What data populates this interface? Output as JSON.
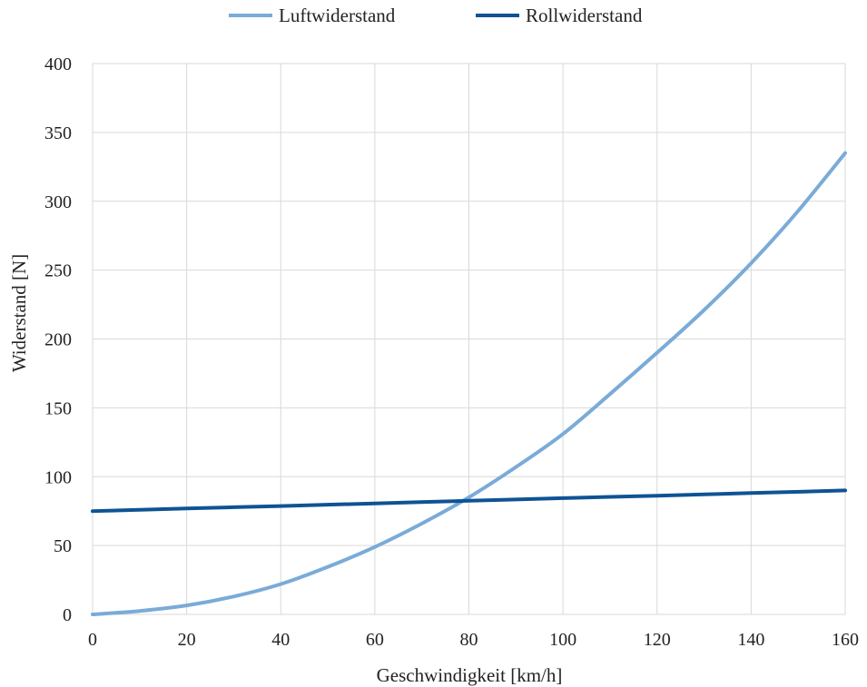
{
  "chart_data": {
    "type": "line",
    "title": "",
    "xlabel": "Geschwindigkeit [km/h]",
    "ylabel": "Widerstand [N]",
    "xlim": [
      0,
      160
    ],
    "ylim": [
      0,
      400
    ],
    "xticks": [
      0,
      20,
      40,
      60,
      80,
      100,
      120,
      140,
      160
    ],
    "yticks": [
      0,
      50,
      100,
      150,
      200,
      250,
      300,
      350,
      400
    ],
    "grid": true,
    "legend_position": "top",
    "series": [
      {
        "name": "Luftwiderstand",
        "color": "#7aabd8",
        "x": [
          0,
          10,
          20,
          30,
          40,
          50,
          60,
          70,
          80,
          90,
          100,
          110,
          120,
          130,
          140,
          150,
          160
        ],
        "y": [
          0,
          2.5,
          6.5,
          13,
          22,
          34.5,
          49,
          66,
          85,
          107,
          131,
          160,
          190,
          221,
          255,
          293,
          335
        ]
      },
      {
        "name": "Rollwiderstand",
        "color": "#0e5394",
        "x": [
          0,
          20,
          40,
          60,
          80,
          100,
          120,
          140,
          160
        ],
        "y": [
          75,
          76.9,
          78.7,
          80.6,
          82.5,
          84.4,
          86.2,
          88.1,
          90
        ]
      }
    ]
  }
}
